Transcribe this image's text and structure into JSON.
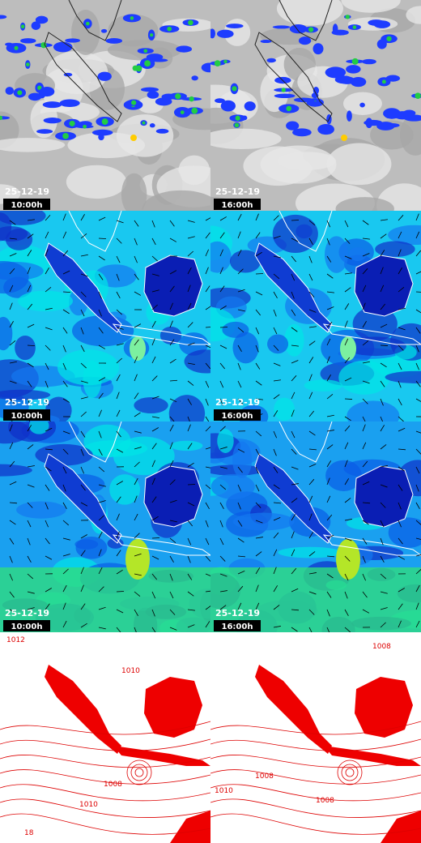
{
  "panels": [
    {
      "date": "25-12-19",
      "time": "10:00h"
    },
    {
      "date": "25-12-19",
      "time": "16:00h"
    },
    {
      "date": "25-12-19",
      "time": "10:00h"
    },
    {
      "date": "25-12-19",
      "time": "16:00h"
    },
    {
      "date": "25-12-19",
      "time": "10:00h"
    },
    {
      "date": "25-12-19",
      "time": "16:00h"
    },
    {
      "contour_labels": [
        "1012",
        "1010",
        "1008",
        "1010",
        "18"
      ]
    },
    {
      "contour_labels": [
        "1008",
        "1008",
        "1010",
        "1008"
      ]
    }
  ]
}
